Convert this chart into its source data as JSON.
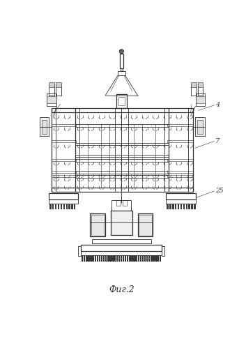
{
  "title": "Фиг.2",
  "bg_color": "#ffffff",
  "lc": "#303030",
  "lc2": "#555555",
  "label_4": "4",
  "label_7": "7",
  "label_25": "25",
  "fig_width": 3.53,
  "fig_height": 4.99,
  "dpi": 100
}
